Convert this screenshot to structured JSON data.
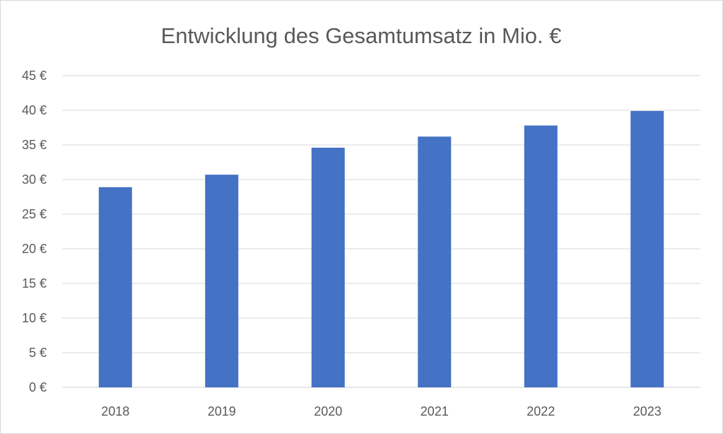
{
  "chart_data": {
    "type": "bar",
    "title": "Entwicklung des Gesamtumsatz in Mio. €",
    "categories": [
      "2018",
      "2019",
      "2020",
      "2021",
      "2022",
      "2023"
    ],
    "values": [
      28.9,
      30.7,
      34.6,
      36.2,
      37.8,
      39.9
    ],
    "ylim": [
      0,
      45
    ],
    "yticks": [
      0,
      5,
      10,
      15,
      20,
      25,
      30,
      35,
      40,
      45
    ],
    "ytick_labels": [
      "0 €",
      "5 €",
      "10 €",
      "15 €",
      "20 €",
      "25 €",
      "30 €",
      "35 €",
      "40 €",
      "45 €"
    ],
    "grid": true,
    "colors": {
      "bar": "#4472c4",
      "grid": "#d9d9d9",
      "text": "#595959",
      "background": "#ffffff"
    }
  }
}
